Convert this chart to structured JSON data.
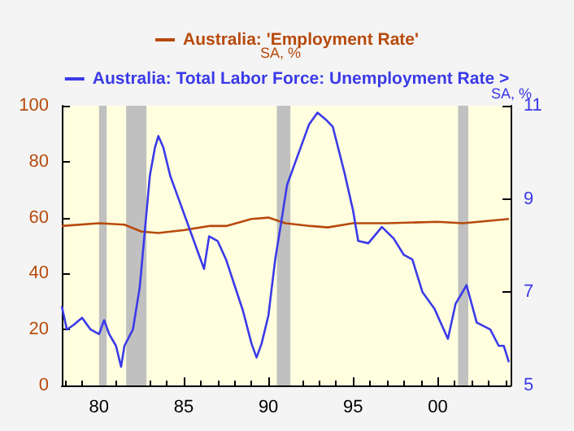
{
  "chart_data": {
    "type": "line",
    "ylabel": "SA, %",
    "y2label": "SA, %",
    "series": [
      {
        "name": "Australia: 'Employment Rate'",
        "color": "#b84a0c",
        "x": [
          1977.8,
          1980,
          1981.5,
          1982.5,
          1983.5,
          1985,
          1986.5,
          1987.5,
          1989,
          1990,
          1991,
          1992.5,
          1993.5,
          1995,
          1997,
          2000,
          2001.5,
          2004.2
        ],
        "values": [
          57,
          58,
          57.5,
          55,
          54.5,
          55.5,
          57,
          57,
          59.5,
          60,
          58,
          57,
          56.5,
          58,
          58,
          58.5,
          58,
          59.5
        ]
      },
      {
        "name": "Australia: Total Labor Force: Unemployment Rate >",
        "color": "#3a3ae8",
        "axis": "y2",
        "x": [
          1977.8,
          1978.1,
          1978.5,
          1979,
          1979.5,
          1980,
          1980.3,
          1980.6,
          1981,
          1981.3,
          1981.5,
          1982,
          1982.4,
          1982.7,
          1983,
          1983.3,
          1983.5,
          1983.8,
          1984.2,
          1984.7,
          1985.3,
          1985.7,
          1986,
          1986.2,
          1986.5,
          1987,
          1987.5,
          1988,
          1988.5,
          1989,
          1989.3,
          1989.6,
          1990,
          1990.4,
          1990.8,
          1991.1,
          1991.9,
          1992.4,
          1992.9,
          1993.4,
          1993.8,
          1994.5,
          1995,
          1995.3,
          1995.9,
          1996.7,
          1997.4,
          1998,
          1998.5,
          1999.1,
          1999.8,
          2000.6,
          2001.05,
          2001.7,
          2002,
          2002.3,
          2003.1,
          2003.6,
          2003.9,
          2004.2
        ],
        "values": [
          6.7,
          6.2,
          6.3,
          6.45,
          6.2,
          6.1,
          6.4,
          6.1,
          5.85,
          5.4,
          5.85,
          6.2,
          7.1,
          8.3,
          9.5,
          10.1,
          10.35,
          10.1,
          9.5,
          9,
          8.4,
          8,
          7.7,
          7.5,
          8.2,
          8.1,
          7.7,
          7.15,
          6.6,
          5.9,
          5.6,
          5.9,
          6.5,
          7.7,
          8.6,
          9.3,
          10.1,
          10.6,
          10.85,
          10.7,
          10.55,
          9.55,
          8.75,
          8.1,
          8.05,
          8.4,
          8.15,
          7.8,
          7.7,
          7,
          6.65,
          6,
          6.75,
          7.15,
          6.75,
          6.35,
          6.2,
          5.85,
          5.85,
          5.5
        ]
      }
    ],
    "xlim": [
      1977.8,
      2004.3
    ],
    "xticks": [
      {
        "value": 1980,
        "label": "80"
      },
      {
        "value": 1985,
        "label": "85"
      },
      {
        "value": 1990,
        "label": "90"
      },
      {
        "value": 1995,
        "label": "95"
      },
      {
        "value": 2000,
        "label": "00"
      }
    ],
    "ylim": [
      0,
      100
    ],
    "yticks": [
      0,
      20,
      40,
      60,
      80,
      100
    ],
    "y2lim": [
      5,
      11
    ],
    "y2ticks": [
      5,
      7,
      9,
      11
    ],
    "bands": [
      {
        "axis": "x",
        "from": 1980,
        "to": 1980.45,
        "color": "#c0c0c0"
      },
      {
        "axis": "x",
        "from": 1981.6,
        "to": 1982.8,
        "color": "#c0c0c0"
      },
      {
        "axis": "x",
        "from": 1990.5,
        "to": 1991.3,
        "color": "#c0c0c0"
      },
      {
        "axis": "x",
        "from": 2001.2,
        "to": 2001.8,
        "color": "#c0c0c0"
      }
    ],
    "grid": false,
    "legend": "top",
    "marker": "none",
    "line_style": "solid"
  }
}
